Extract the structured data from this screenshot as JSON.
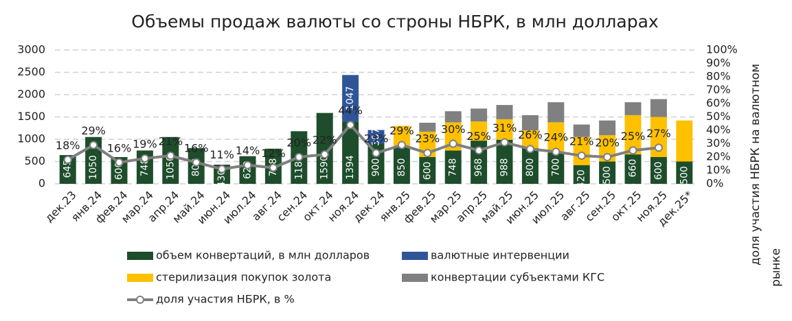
{
  "chart_data": {
    "type": "bar",
    "title": "Объемы продаж валюты со строны НБРК, в млн долларах",
    "y2_label": "доля участия НБРК на валютном рынке",
    "categories": [
      "дек.23",
      "янв.24",
      "фев.24",
      "мар.24",
      "апр.24",
      "май.24",
      "июн.24",
      "июл.24",
      "авг.24",
      "сен.24",
      "окт.24",
      "ноя.24",
      "дек.24",
      "янв.25",
      "фев.25",
      "мар.25",
      "апр.25",
      "май.25",
      "июн.25",
      "июл.25",
      "авг.25",
      "сен.25",
      "окт.25",
      "ноя.25",
      "дек.25*"
    ],
    "ylim": [
      0,
      3000
    ],
    "yticks": [
      0,
      500,
      1000,
      1500,
      2000,
      2500,
      3000
    ],
    "y2lim": [
      0,
      100
    ],
    "y2ticks": [
      {
        "value": 0,
        "label": "0%"
      },
      {
        "value": 10,
        "label": "10%"
      },
      {
        "value": 20,
        "label": "20%"
      },
      {
        "value": 30,
        "label": "30%"
      },
      {
        "value": 40,
        "label": "40%"
      },
      {
        "value": 50,
        "label": "50%"
      },
      {
        "value": 60,
        "label": "60%"
      },
      {
        "value": 70,
        "label": "70%"
      },
      {
        "value": 80,
        "label": "80%"
      },
      {
        "value": 90,
        "label": "90%"
      },
      {
        "value": 100,
        "label": "100%"
      }
    ],
    "grid": true,
    "series": [
      {
        "name": "объем конвертаций, в млн долларов",
        "color": "#1e4d2b",
        "data_labels": true,
        "values": [
          645,
          1050,
          600,
          748,
          1050,
          800,
          430,
          620,
          788,
          1180,
          1590,
          1394,
          900,
          850,
          600,
          748,
          968,
          988,
          800,
          700,
          420,
          500,
          660,
          600,
          500
        ]
      },
      {
        "name": "валютные интервенции",
        "color": "#2f5597",
        "data_labels": true,
        "values": [
          null,
          null,
          null,
          null,
          null,
          null,
          null,
          null,
          null,
          null,
          null,
          1047,
          307,
          null,
          null,
          null,
          null,
          null,
          null,
          null,
          null,
          null,
          null,
          null,
          null
        ]
      },
      {
        "name": "стерилизация покупок золота",
        "color": "#ffc000",
        "values": [
          null,
          null,
          null,
          null,
          null,
          null,
          null,
          null,
          null,
          null,
          null,
          null,
          null,
          450,
          570,
          630,
          430,
          460,
          400,
          680,
          630,
          590,
          880,
          900,
          920
        ]
      },
      {
        "name": "конвертации субъектами КГС",
        "color": "#808080",
        "values": [
          null,
          null,
          null,
          null,
          null,
          null,
          null,
          null,
          null,
          null,
          null,
          null,
          null,
          null,
          200,
          250,
          290,
          320,
          340,
          450,
          280,
          330,
          290,
          400,
          null
        ]
      },
      {
        "name": "доля участия НБРК, в %",
        "color": "#7f7f7f",
        "type": "line",
        "axis": "y2",
        "values": [
          18,
          29,
          16,
          19,
          21,
          16,
          11,
          14,
          12,
          20,
          22,
          44,
          23,
          29,
          23,
          30,
          25,
          31,
          26,
          24,
          21,
          20,
          25,
          27,
          null
        ],
        "value_labels": [
          "18%",
          "29%",
          "16%",
          "19%",
          "21%",
          "16%",
          "11%",
          "14%",
          "12%",
          "20%",
          "22%",
          "44%",
          "23%",
          "29%",
          "23%",
          "30%",
          "25%",
          "31%",
          "26%",
          "24%",
          "21%",
          "20%",
          "25%",
          "27%",
          null
        ]
      }
    ]
  }
}
